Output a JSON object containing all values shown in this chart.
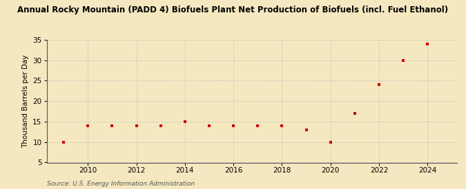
{
  "title": "Annual Rocky Mountain (PADD 4) Biofuels Plant Net Production of Biofuels (incl. Fuel Ethanol)",
  "ylabel": "Thousand Barrels per Day",
  "source": "Source: U.S. Energy Information Administration",
  "x": [
    2009,
    2010,
    2011,
    2012,
    2013,
    2014,
    2015,
    2016,
    2017,
    2018,
    2019,
    2020,
    2021,
    2022,
    2023,
    2024
  ],
  "y": [
    10.0,
    14.0,
    14.0,
    14.0,
    14.0,
    15.0,
    14.0,
    14.0,
    14.0,
    14.0,
    13.0,
    10.0,
    17.0,
    24.0,
    30.0,
    34.0
  ],
  "marker_color": "#cc0000",
  "marker": "s",
  "marker_size": 3.5,
  "bg_color": "#f5e8c0",
  "grid_color": "#bbbbbb",
  "ylim": [
    5,
    35
  ],
  "yticks": [
    5,
    10,
    15,
    20,
    25,
    30,
    35
  ],
  "xlim": [
    2008.3,
    2025.2
  ],
  "xticks": [
    2010,
    2012,
    2014,
    2016,
    2018,
    2020,
    2022,
    2024
  ],
  "title_fontsize": 8.5,
  "ylabel_fontsize": 7.5,
  "tick_fontsize": 7.5,
  "source_fontsize": 6.5
}
